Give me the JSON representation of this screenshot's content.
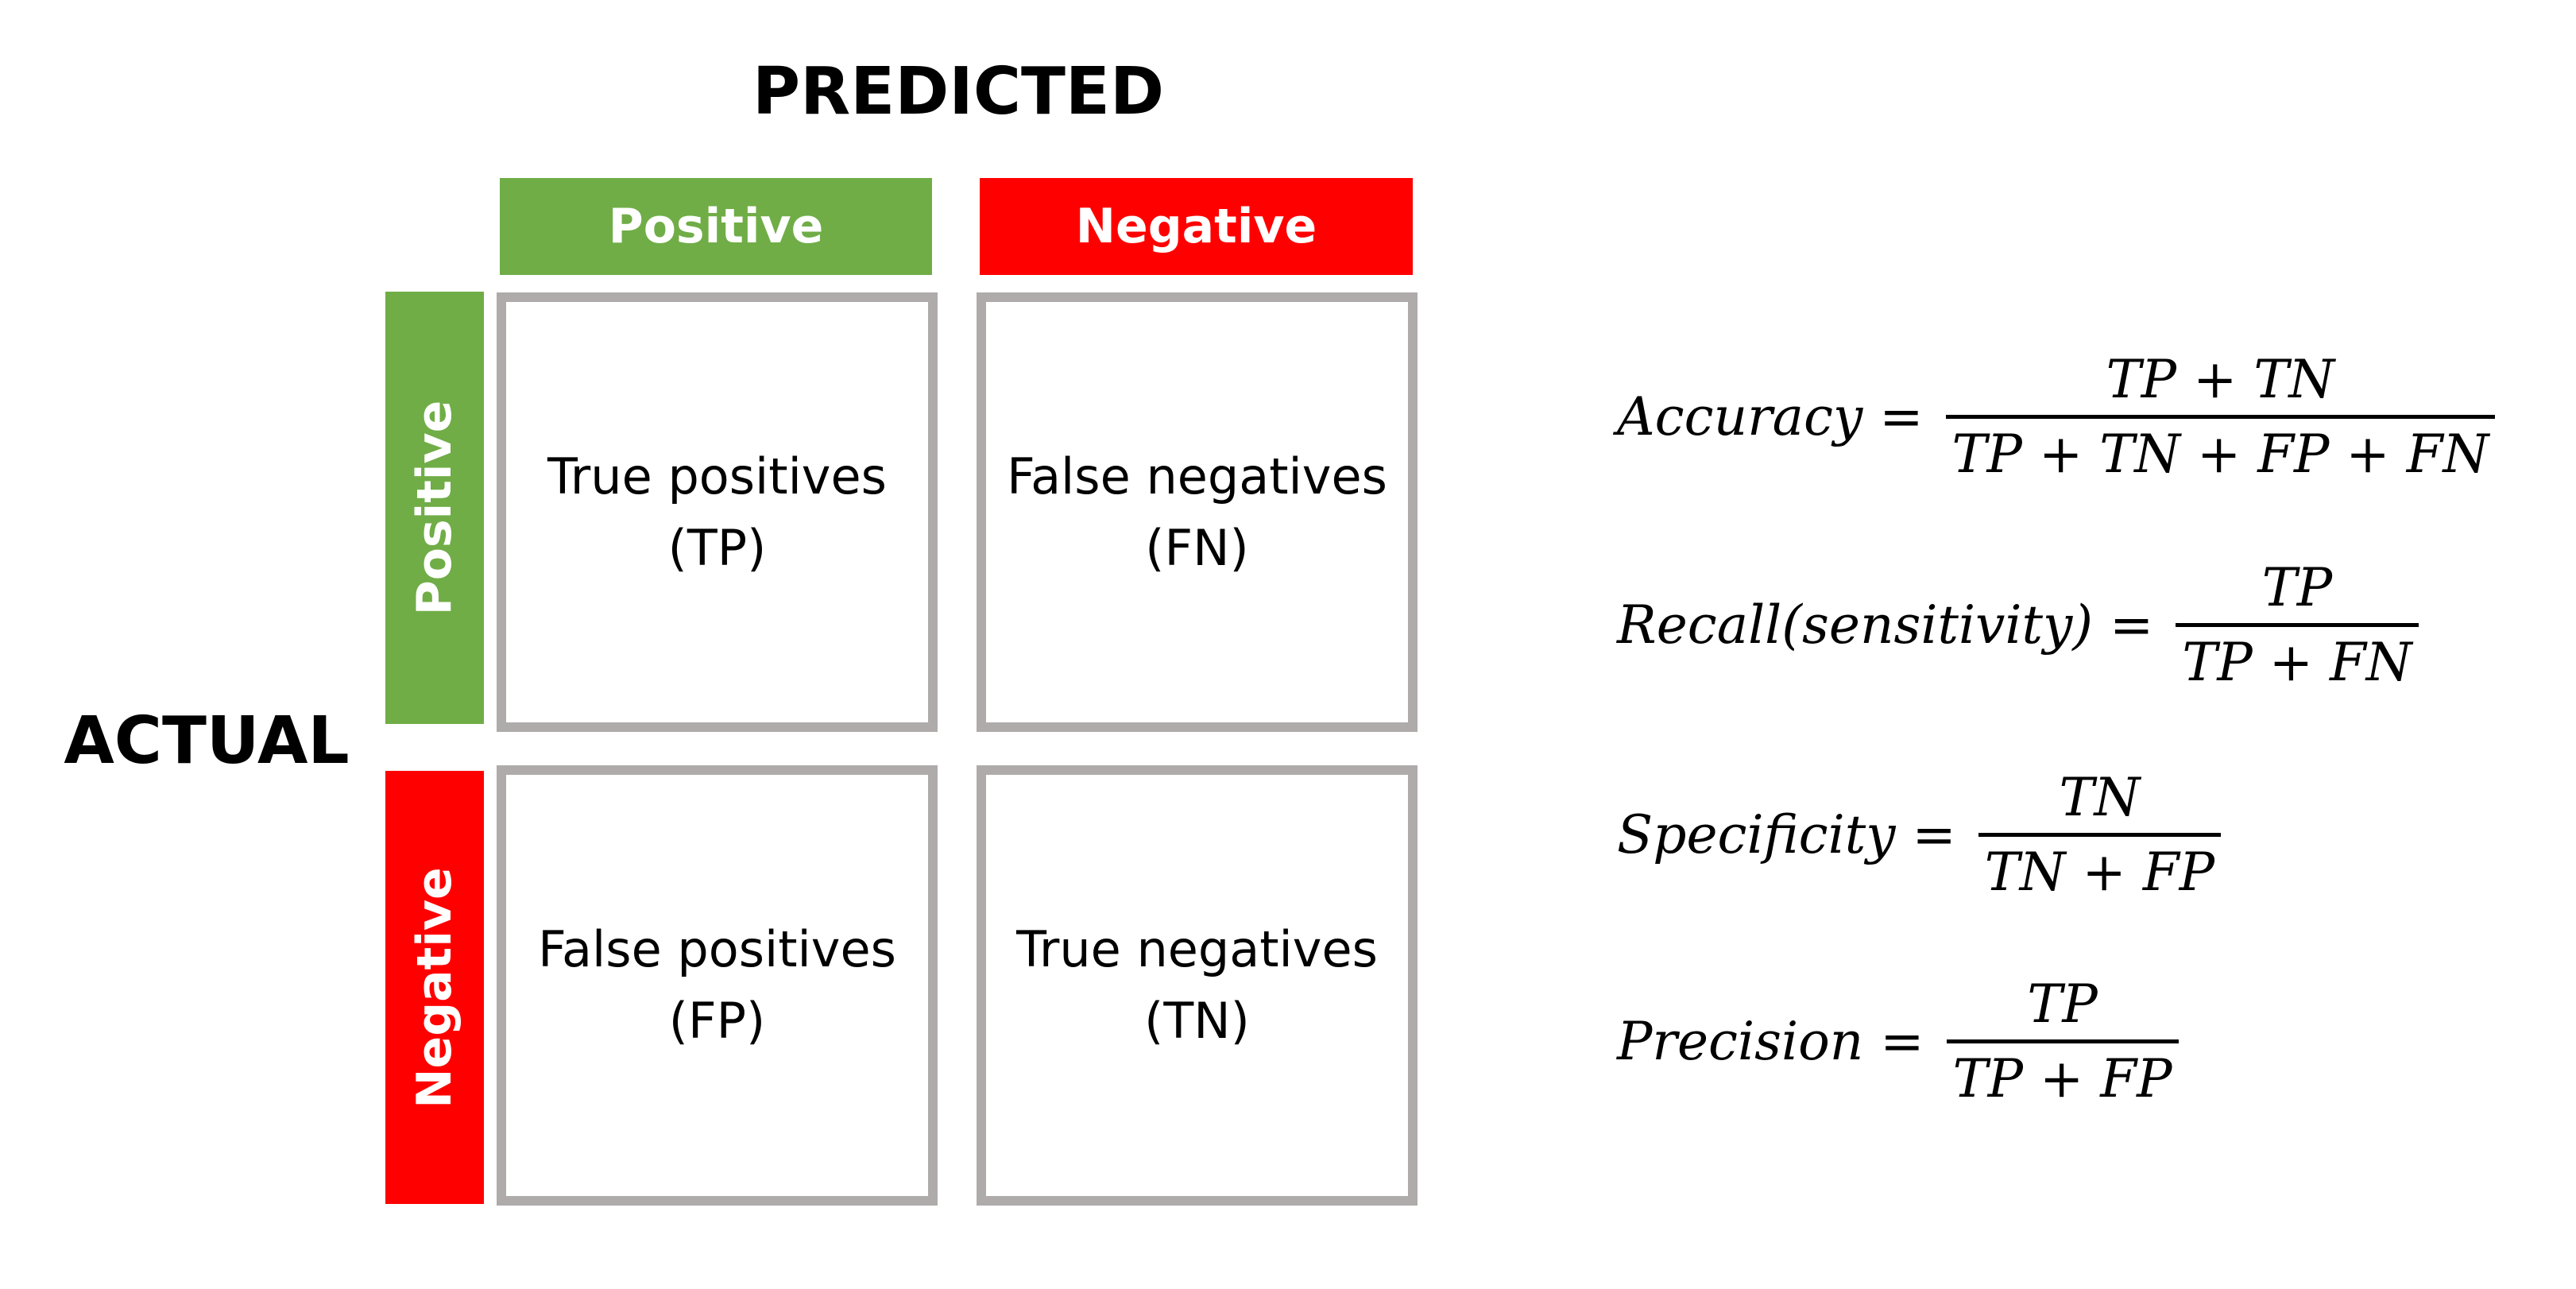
{
  "titles": {
    "predicted": "PREDICTED",
    "actual": "ACTUAL"
  },
  "columns": [
    {
      "label": "Positive",
      "color": "#70ad47"
    },
    {
      "label": "Negative",
      "color": "#ff0000"
    }
  ],
  "rows": [
    {
      "label": "Positive",
      "color": "#70ad47"
    },
    {
      "label": "Negative",
      "color": "#ff0000"
    }
  ],
  "cells": {
    "tp": {
      "line1": "True positives",
      "line2": "(TP)"
    },
    "fn": {
      "line1": "False negatives",
      "line2": "(FN)"
    },
    "fp": {
      "line1": "False positives",
      "line2": "(FP)"
    },
    "tn": {
      "line1": "True negatives",
      "line2": "(TN)"
    }
  },
  "cell_border_color": "#afabab",
  "formulas": {
    "accuracy": {
      "lhs": "Accuracy =",
      "numerator": "TP + TN",
      "denominator": "TP + TN + FP + FN"
    },
    "recall": {
      "lhs": "Recall(sensitivity) =",
      "numerator": "TP",
      "denominator": "TP + FN"
    },
    "specificity": {
      "lhs": "Specificity =",
      "numerator": "TN",
      "denominator": "TN + FP"
    },
    "precision": {
      "lhs": "Precision =",
      "numerator": "TP",
      "denominator": "TP + FP"
    }
  }
}
